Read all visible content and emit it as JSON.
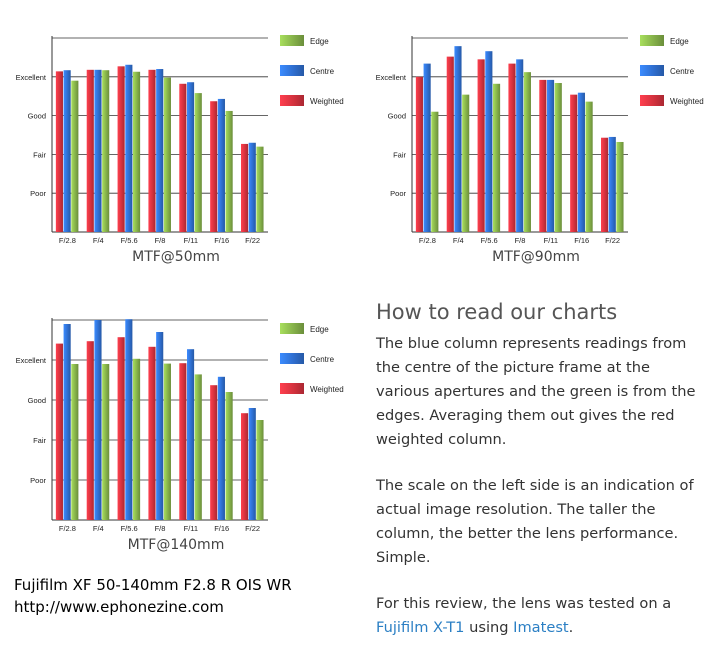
{
  "legend": {
    "edge": "Edge",
    "centre": "Centre",
    "weighted": "Weighted"
  },
  "colors": {
    "edge": "#86b24a",
    "centre": "#2f6fd0",
    "weighted": "#d5323e",
    "grid": "#333333"
  },
  "chart_data": [
    {
      "type": "bar",
      "title": "MTF@50mm",
      "categories": [
        "F/2.8",
        "F/4",
        "F/5.6",
        "F/8",
        "F/11",
        "F/16",
        "F/22"
      ],
      "y_tick_labels": [
        "Poor",
        "Fair",
        "Good",
        "Excellent"
      ],
      "ylim": [
        0,
        5
      ],
      "grid": true,
      "legend_position": "right",
      "series": [
        {
          "name": "Weighted",
          "color": "#d5323e",
          "values": [
            4.14,
            4.18,
            4.27,
            4.18,
            3.82,
            3.37,
            2.27
          ]
        },
        {
          "name": "Centre",
          "color": "#2f6fd0",
          "values": [
            4.17,
            4.18,
            4.31,
            4.2,
            3.86,
            3.43,
            2.3
          ]
        },
        {
          "name": "Edge",
          "color": "#86b24a",
          "values": [
            3.9,
            4.17,
            4.13,
            3.98,
            3.58,
            3.12,
            2.2
          ]
        }
      ]
    },
    {
      "type": "bar",
      "title": "MTF@90mm",
      "categories": [
        "F/2.8",
        "F/4",
        "F/5.6",
        "F/8",
        "F/11",
        "F/16",
        "F/22"
      ],
      "y_tick_labels": [
        "Poor",
        "Fair",
        "Good",
        "Excellent"
      ],
      "ylim": [
        0,
        5
      ],
      "grid": true,
      "legend_position": "right",
      "series": [
        {
          "name": "Weighted",
          "color": "#d5323e",
          "values": [
            4.0,
            4.52,
            4.45,
            4.34,
            3.92,
            3.54,
            2.43
          ]
        },
        {
          "name": "Centre",
          "color": "#2f6fd0",
          "values": [
            4.34,
            4.79,
            4.66,
            4.45,
            3.92,
            3.59,
            2.45
          ]
        },
        {
          "name": "Edge",
          "color": "#86b24a",
          "values": [
            3.1,
            3.54,
            3.82,
            4.12,
            3.84,
            3.36,
            2.32
          ]
        }
      ]
    },
    {
      "type": "bar",
      "title": "MTF@140mm",
      "categories": [
        "F/2.8",
        "F/4",
        "F/5.6",
        "F/8",
        "F/11",
        "F/16",
        "F/22"
      ],
      "y_tick_labels": [
        "Poor",
        "Fair",
        "Good",
        "Excellent"
      ],
      "ylim": [
        0,
        5
      ],
      "grid": true,
      "legend_position": "right",
      "series": [
        {
          "name": "Weighted",
          "color": "#d5323e",
          "values": [
            4.41,
            4.47,
            4.57,
            4.33,
            3.92,
            3.37,
            2.67
          ]
        },
        {
          "name": "Centre",
          "color": "#2f6fd0",
          "values": [
            4.9,
            5.0,
            5.02,
            4.7,
            4.27,
            3.58,
            2.8
          ]
        },
        {
          "name": "Edge",
          "color": "#86b24a",
          "values": [
            3.9,
            3.9,
            4.03,
            3.91,
            3.64,
            3.2,
            2.5
          ]
        }
      ]
    }
  ],
  "explain": {
    "heading": "How to read our charts",
    "para1": "The blue column represents readings from the centre of the picture frame at the various apertures and the green is from the edges. Averaging them out gives the red weighted column.",
    "para2": "The scale on the left side is an indication of actual image resolution. The taller the column, the better the lens performance. Simple.",
    "para3_prefix": "For this review, the lens was tested on a",
    "camera_link": "Fujifilm X-T1",
    "para3_mid": "using",
    "imatest_link": "Imatest",
    "para3_suffix": "."
  },
  "caption": {
    "line1": "Fujifilm XF 50-140mm F2.8 R OIS WR",
    "line2": "http://www.ephonezine.com"
  }
}
